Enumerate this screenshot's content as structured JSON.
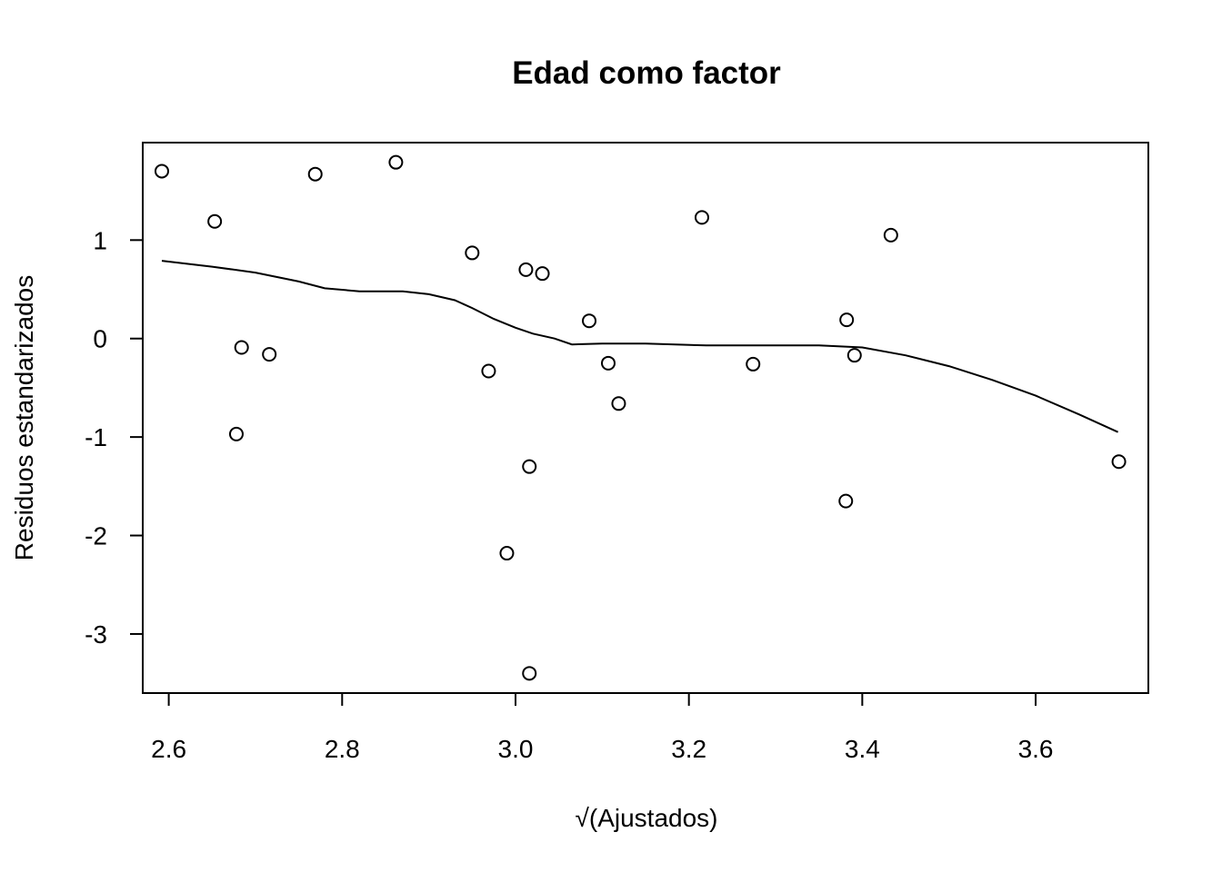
{
  "chart_data": {
    "type": "scatter",
    "title": "Edad como factor",
    "xlabel": "√(Ajustados)",
    "ylabel": "Residuos estandarizados",
    "xlim": [
      2.57,
      3.73
    ],
    "ylim": [
      -3.6,
      1.99
    ],
    "xticks": [
      2.6,
      2.8,
      3.0,
      3.2,
      3.4,
      3.6
    ],
    "xtick_labels": [
      "2.6",
      "2.8",
      "3.0",
      "3.2",
      "3.4",
      "3.6"
    ],
    "yticks": [
      1,
      0,
      -1,
      -2,
      -3
    ],
    "ytick_labels": [
      "1",
      "0",
      "-1",
      "-2",
      "-3"
    ],
    "grid": false,
    "series": [
      {
        "kind": "points",
        "points": [
          [
            2.592,
            1.7
          ],
          [
            2.653,
            1.19
          ],
          [
            2.684,
            -0.09
          ],
          [
            2.716,
            -0.16
          ],
          [
            2.678,
            -0.97
          ],
          [
            2.769,
            1.67
          ],
          [
            2.862,
            1.79
          ],
          [
            2.95,
            0.87
          ],
          [
            2.969,
            -0.33
          ],
          [
            2.99,
            -2.18
          ],
          [
            3.012,
            0.7
          ],
          [
            3.031,
            0.66
          ],
          [
            3.016,
            -1.3
          ],
          [
            3.016,
            -3.4
          ],
          [
            3.085,
            0.18
          ],
          [
            3.107,
            -0.25
          ],
          [
            3.119,
            -0.66
          ],
          [
            3.215,
            1.23
          ],
          [
            3.274,
            -0.26
          ],
          [
            3.382,
            0.19
          ],
          [
            3.391,
            -0.17
          ],
          [
            3.381,
            -1.65
          ],
          [
            3.433,
            1.05
          ],
          [
            3.696,
            -1.25
          ]
        ]
      },
      {
        "kind": "smooth-line",
        "points": [
          [
            2.592,
            0.79
          ],
          [
            2.65,
            0.73
          ],
          [
            2.7,
            0.67
          ],
          [
            2.75,
            0.58
          ],
          [
            2.78,
            0.51
          ],
          [
            2.82,
            0.48
          ],
          [
            2.87,
            0.48
          ],
          [
            2.9,
            0.45
          ],
          [
            2.93,
            0.39
          ],
          [
            2.95,
            0.31
          ],
          [
            2.975,
            0.2
          ],
          [
            3.0,
            0.11
          ],
          [
            3.02,
            0.05
          ],
          [
            3.045,
            0.0
          ],
          [
            3.065,
            -0.06
          ],
          [
            3.1,
            -0.05
          ],
          [
            3.15,
            -0.05
          ],
          [
            3.22,
            -0.07
          ],
          [
            3.28,
            -0.07
          ],
          [
            3.35,
            -0.07
          ],
          [
            3.4,
            -0.09
          ],
          [
            3.45,
            -0.17
          ],
          [
            3.5,
            -0.28
          ],
          [
            3.55,
            -0.42
          ],
          [
            3.6,
            -0.58
          ],
          [
            3.65,
            -0.77
          ],
          [
            3.695,
            -0.95
          ]
        ]
      }
    ]
  }
}
